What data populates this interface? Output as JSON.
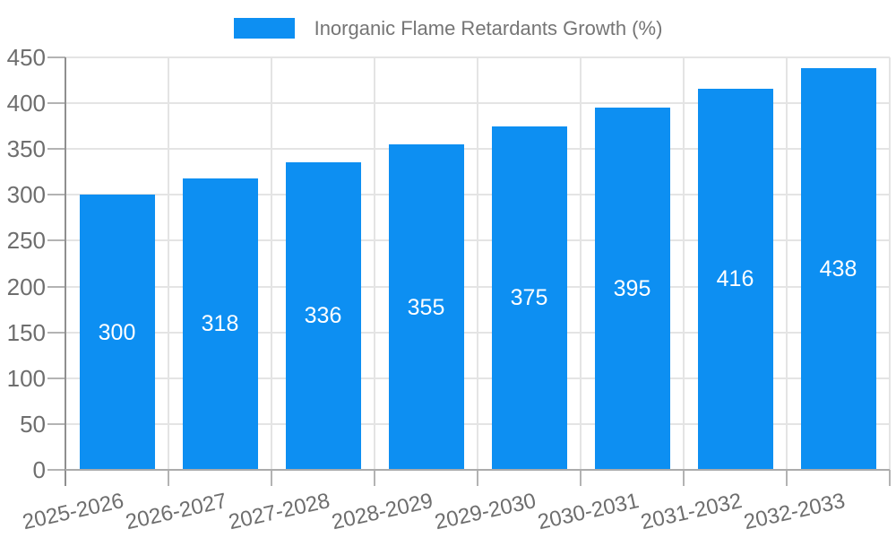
{
  "legend": {
    "label": "Inorganic Flame Retardants Growth (%)"
  },
  "chart_data": {
    "type": "bar",
    "title": "Inorganic Flame Retardants Growth (%)",
    "series_name": "Inorganic Flame Retardants Growth (%)",
    "categories": [
      "2025-2026",
      "2026-2027",
      "2027-2028",
      "2028-2029",
      "2029-2030",
      "2030-2031",
      "2031-2032",
      "2032-2033"
    ],
    "values": [
      300,
      318,
      336,
      355,
      375,
      395,
      416,
      438
    ],
    "xlabel": "",
    "ylabel": "",
    "ylim": [
      0,
      450
    ],
    "ytick_step": 50,
    "grid": true,
    "legend_position": "top-center",
    "value_label_position": "inside-center",
    "x_label_rotation_deg": -12.5,
    "colors": {
      "bar": "#0d8ff2",
      "grid_line": "#e4e4e4",
      "y_axis_line": "#8f8f8f",
      "x_axis_line": "#ababab",
      "tick": "#b3b3b3",
      "axis_text": "#6e6e6e",
      "legend_text": "#757575",
      "value_text": "#ffffff",
      "background": "#ffffff"
    }
  }
}
